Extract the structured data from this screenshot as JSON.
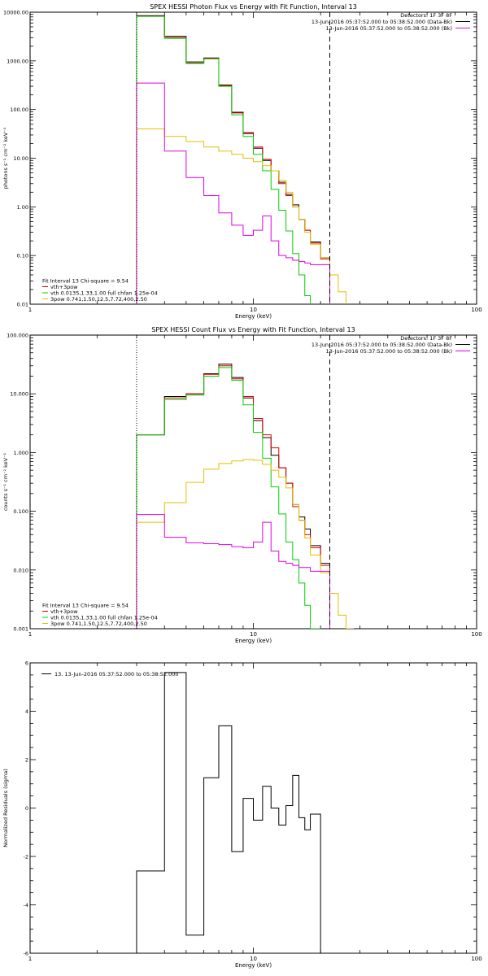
{
  "chart_data": [
    {
      "type": "line",
      "title": "SPEX HESSI Photon Flux vs Energy with Fit Function, Interval 13",
      "xlabel": "Energy (keV)",
      "ylabel": "photons s⁻¹ cm⁻² keV⁻¹",
      "xscale": "log",
      "yscale": "log",
      "xlim": [
        1,
        100
      ],
      "ylim": [
        0.01,
        10000
      ],
      "xticks": [
        {
          "v": 1,
          "label": "1"
        },
        {
          "v": 10,
          "label": "10"
        },
        {
          "v": 100,
          "label": "100"
        }
      ],
      "yticks": [
        {
          "v": 0.01,
          "label": "0.01"
        },
        {
          "v": 0.1,
          "label": "0.10"
        },
        {
          "v": 1,
          "label": "1.00"
        },
        {
          "v": 10,
          "label": "10.00"
        },
        {
          "v": 100,
          "label": "100.00"
        },
        {
          "v": 1000,
          "label": "1000.00"
        },
        {
          "v": 10000,
          "label": "10000.00"
        }
      ],
      "bin_edges": [
        3.0,
        4.0,
        5.0,
        6.0,
        7.0,
        8.0,
        9.0,
        10.0,
        11.0,
        12.0,
        13.0,
        14.0,
        15.0,
        16.0,
        17.0,
        18.0,
        20.0,
        22.0
      ],
      "series": [
        {
          "key": "data",
          "color": "#000000",
          "values": [
            8500,
            3200,
            950,
            1150,
            320,
            88,
            32,
            16,
            9,
            5.5,
            3.2,
            1.8,
            1.1,
            0.55,
            0.33,
            0.19,
            0.09
          ]
        },
        {
          "key": "total",
          "color": "#e00000",
          "values": [
            8300,
            3000,
            900,
            1130,
            310,
            85,
            34,
            17,
            9.5,
            5.5,
            3.0,
            1.7,
            1.0,
            0.55,
            0.33,
            0.18,
            0.085
          ]
        },
        {
          "name": "vth",
          "color": "#00d000",
          "bins": [
            3.0,
            4.0,
            5.0,
            6.0,
            7.0,
            8.0,
            9.0,
            10.0,
            11.0,
            12.0,
            13.0,
            14.0,
            15.0,
            16.0,
            17.0,
            18.0
          ],
          "values": [
            8200,
            2900,
            880,
            1100,
            300,
            78,
            28,
            12,
            5.5,
            2.3,
            0.85,
            0.32,
            0.11,
            0.04,
            0.015
          ]
        },
        {
          "name": "3pow",
          "color": "#e0c000",
          "bins": [
            3.0,
            4.0,
            5.0,
            6.0,
            7.0,
            8.0,
            9.0,
            10.0,
            11.0,
            12.0,
            13.0,
            14.0,
            15.0,
            16.0,
            17.0,
            18.0,
            20.0,
            22.0,
            24.0,
            26.0
          ],
          "values": [
            40,
            28,
            22,
            17,
            14,
            12,
            10,
            8.5,
            7,
            5.5,
            3.5,
            2.0,
            1.0,
            0.55,
            0.3,
            0.17,
            0.09,
            0.04,
            0.018
          ]
        },
        {
          "name": "data-bk",
          "color": "#e000e0",
          "values": [
            350,
            14,
            4,
            1.7,
            0.75,
            0.42,
            0.26,
            0.33,
            0.65,
            0.2,
            0.1,
            0.09,
            0.08,
            0.075,
            0.07,
            0.065,
            0.065
          ]
        }
      ],
      "vlines": [
        {
          "x": 3.0,
          "style": "dotted",
          "color": "#000000"
        },
        {
          "x": 22.0,
          "style": "dashed",
          "color": "#000000"
        }
      ],
      "legend_right": {
        "placement": "top-right",
        "header": "Detectors: 1F 3F 8F",
        "items": [
          {
            "text": "13-Jun-2016 05:37:52.000 to 05:38:52.000 (Data-Bk)",
            "color": "#000000"
          },
          {
            "text": "13-Jun-2016 05:37:52.000 to 05:38:52.000 (Bk)",
            "color": "#e000e0"
          }
        ]
      },
      "legend_left": {
        "placement": "bottom-left",
        "header": "Fit Interval 13   Chi-square = 9.54",
        "items": [
          {
            "text": "vth+3pow",
            "color": "#e00000"
          },
          {
            "text": "vth 0.0135,1.33,1.00  full chfan 1.25e-04",
            "color": "#00d000"
          },
          {
            "text": "3pow 0.741,1.50,12.5,7.72,400,2.50",
            "color": "#e0c000"
          }
        ]
      }
    },
    {
      "type": "line",
      "title": "SPEX HESSI Count Flux vs Energy with Fit Function, Interval 13",
      "xlabel": "Energy (keV)",
      "ylabel": "counts s⁻¹ cm⁻² keV⁻¹",
      "xscale": "log",
      "yscale": "log",
      "xlim": [
        1,
        100
      ],
      "ylim": [
        0.001,
        100
      ],
      "xticks": [
        {
          "v": 1,
          "label": "1"
        },
        {
          "v": 10,
          "label": "10"
        },
        {
          "v": 100,
          "label": "100"
        }
      ],
      "yticks": [
        {
          "v": 0.001,
          "label": "0.001"
        },
        {
          "v": 0.01,
          "label": "0.010"
        },
        {
          "v": 0.1,
          "label": "0.100"
        },
        {
          "v": 1,
          "label": "1.000"
        },
        {
          "v": 10,
          "label": "10.000"
        },
        {
          "v": 100,
          "label": "100.000"
        }
      ],
      "bin_edges": [
        3.0,
        4.0,
        5.0,
        6.0,
        7.0,
        8.0,
        9.0,
        10.0,
        11.0,
        12.0,
        13.0,
        14.0,
        15.0,
        16.0,
        17.0,
        18.0,
        20.0,
        22.0
      ],
      "series": [
        {
          "key": "data",
          "color": "#000000",
          "values": [
            2.0,
            9.0,
            10.0,
            22.0,
            32.0,
            19.0,
            8.5,
            3.5,
            1.8,
            0.9,
            0.55,
            0.3,
            0.13,
            0.08,
            0.05,
            0.026,
            0.013
          ]
        },
        {
          "key": "total",
          "color": "#e00000",
          "values": [
            2.0,
            8.5,
            10.0,
            21.5,
            30.0,
            18.0,
            9.0,
            3.8,
            2.0,
            1.2,
            0.55,
            0.3,
            0.12,
            0.07,
            0.04,
            0.024,
            0.012
          ]
        },
        {
          "name": "vth",
          "color": "#00d000",
          "bins": [
            3.0,
            4.0,
            5.0,
            6.0,
            7.0,
            8.0,
            9.0,
            10.0,
            11.0,
            12.0,
            13.0,
            14.0,
            15.0,
            16.0,
            17.0,
            18.0,
            20.0
          ],
          "values": [
            2.0,
            8.0,
            9.5,
            20.0,
            28.0,
            17.0,
            6.5,
            2.2,
            0.8,
            0.26,
            0.09,
            0.03,
            0.015,
            0.006,
            0.0025,
            0.001
          ]
        },
        {
          "name": "3pow",
          "color": "#e0c000",
          "bins": [
            3.0,
            4.0,
            5.0,
            6.0,
            7.0,
            8.0,
            9.0,
            10.0,
            11.0,
            12.0,
            13.0,
            14.0,
            15.0,
            16.0,
            17.0,
            18.0,
            20.0,
            22.0,
            24.0,
            26.0,
            28.0
          ],
          "values": [
            0.065,
            0.14,
            0.31,
            0.52,
            0.65,
            0.72,
            0.76,
            0.74,
            0.63,
            0.5,
            0.38,
            0.25,
            0.13,
            0.07,
            0.035,
            0.018,
            0.009,
            0.004,
            0.0017,
            0.001
          ]
        },
        {
          "name": "data-bk",
          "color": "#e000e0",
          "values": [
            0.088,
            0.036,
            0.029,
            0.028,
            0.027,
            0.025,
            0.024,
            0.03,
            0.065,
            0.021,
            0.014,
            0.013,
            0.012,
            0.011,
            0.011,
            0.0095,
            0.0095
          ]
        }
      ],
      "vlines": [
        {
          "x": 3.0,
          "style": "dotted",
          "color": "#000000"
        },
        {
          "x": 22.0,
          "style": "dashed",
          "color": "#000000"
        }
      ],
      "legend_right": {
        "placement": "top-right",
        "header": "Detectors: 1F 3F 8F",
        "items": [
          {
            "text": "13-Jun-2016 05:37:52.000 to 05:38:52.000 (Data-Bk)",
            "color": "#000000"
          },
          {
            "text": "13-Jun-2016 05:37:52.000 to 05:38:52.000 (Bk)",
            "color": "#e000e0"
          }
        ]
      },
      "legend_left": {
        "placement": "bottom-left",
        "header": "Fit Interval 13   Chi-square = 9.54",
        "items": [
          {
            "text": "vth+3pow",
            "color": "#e00000"
          },
          {
            "text": "vth 0.0135,1.33,1.00  full chfan 1.25e-04",
            "color": "#00d000"
          },
          {
            "text": "3pow 0.741,1.50,12.5,7.72,400,2.50",
            "color": "#e0c000"
          }
        ]
      }
    },
    {
      "type": "line",
      "title": "",
      "xlabel": "Energy (keV)",
      "ylabel": "Normalized Residuals (sigma)",
      "xscale": "log",
      "yscale": "linear",
      "xlim": [
        1,
        100
      ],
      "ylim": [
        -6,
        6
      ],
      "xticks": [
        {
          "v": 1,
          "label": "1"
        },
        {
          "v": 10,
          "label": "10"
        },
        {
          "v": 100,
          "label": "100"
        }
      ],
      "yticks": [
        {
          "v": -6,
          "label": "-6"
        },
        {
          "v": -4,
          "label": "-4"
        },
        {
          "v": -2,
          "label": "-2"
        },
        {
          "v": 0,
          "label": "0"
        },
        {
          "v": 2,
          "label": "2"
        },
        {
          "v": 4,
          "label": "4"
        },
        {
          "v": 6,
          "label": "6"
        }
      ],
      "bin_edges": [
        3.0,
        4.0,
        5.0,
        6.0,
        7.0,
        8.0,
        9.0,
        10.0,
        11.0,
        12.0,
        13.0,
        14.0,
        15.0,
        16.0,
        17.0,
        18.0,
        20.0,
        22.0
      ],
      "series": [
        {
          "name": "13. 13-Jun-2016 05:37:52.000 to 05:38:52.000",
          "color": "#000000",
          "values": [
            -2.6,
            5.6,
            -5.25,
            1.25,
            3.4,
            -1.8,
            0.4,
            -0.5,
            0.9,
            0.0,
            -0.7,
            0.1,
            1.35,
            -0.4,
            -0.9,
            -0.25
          ]
        }
      ],
      "legend_left": {
        "placement": "top-left",
        "items": [
          {
            "text": "13. 13-Jun-2016 05:37:52.000 to 05:38:52.000",
            "color": "#000000"
          }
        ]
      }
    }
  ]
}
